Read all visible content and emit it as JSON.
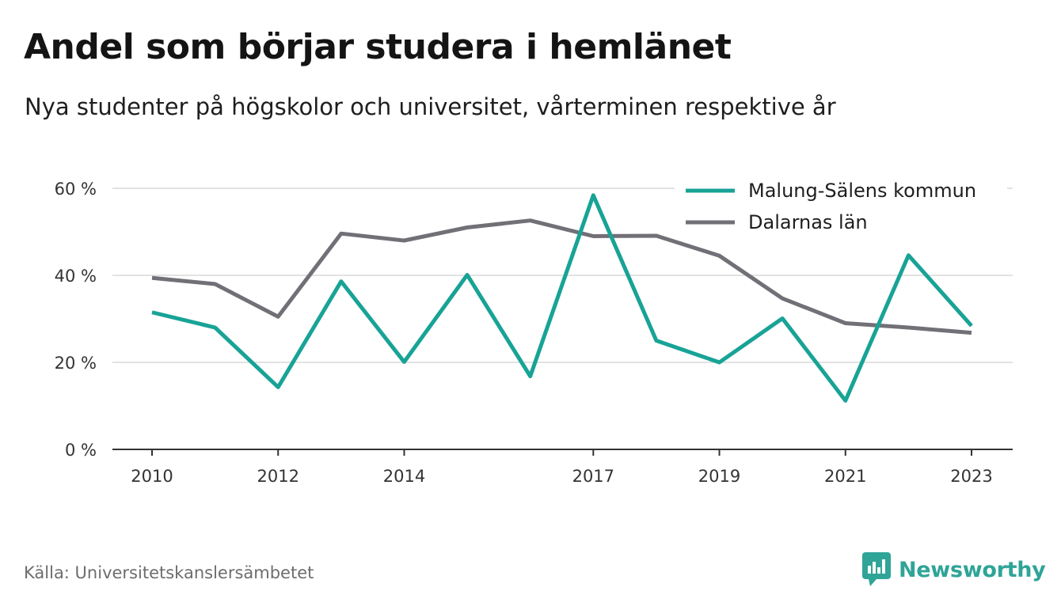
{
  "title": "Andel som börjar studera i hemlänet",
  "subtitle": "Nya studenter på högskolor och universitet, vårterminen respektive år",
  "source": "Källa: Universitetskanslersämbetet",
  "brand": {
    "name": "Newsworthy",
    "icon": "newsworthy-logo-icon",
    "color": "#2fa497"
  },
  "chart_data": {
    "type": "line",
    "title": "",
    "xlabel": "",
    "ylabel": "",
    "x": [
      2010,
      2011,
      2012,
      2013,
      2014,
      2015,
      2016,
      2017,
      2018,
      2019,
      2020,
      2021,
      2022,
      2023
    ],
    "x_tick_labels": [
      "2010",
      "2012",
      "2014",
      "2017",
      "2019",
      "2021",
      "2023"
    ],
    "y_tick_labels": [
      "0 %",
      "20 %",
      "40 %",
      "60 %"
    ],
    "ylim": [
      0,
      60
    ],
    "grid": true,
    "legend_position": "top-right",
    "series": [
      {
        "name": "Malung-Sälens kommun",
        "color": "#18a396",
        "values": [
          31.5,
          28,
          14.3,
          38.6,
          20.1,
          40.1,
          16.8,
          58.4,
          25,
          20,
          30.1,
          11.2,
          44.6,
          28.4
        ]
      },
      {
        "name": "Dalarnas län",
        "color": "#727077",
        "values": [
          39.4,
          38,
          30.5,
          49.6,
          48,
          51,
          52.6,
          49,
          49.1,
          44.5,
          34.7,
          29,
          28,
          26.8
        ]
      }
    ]
  }
}
